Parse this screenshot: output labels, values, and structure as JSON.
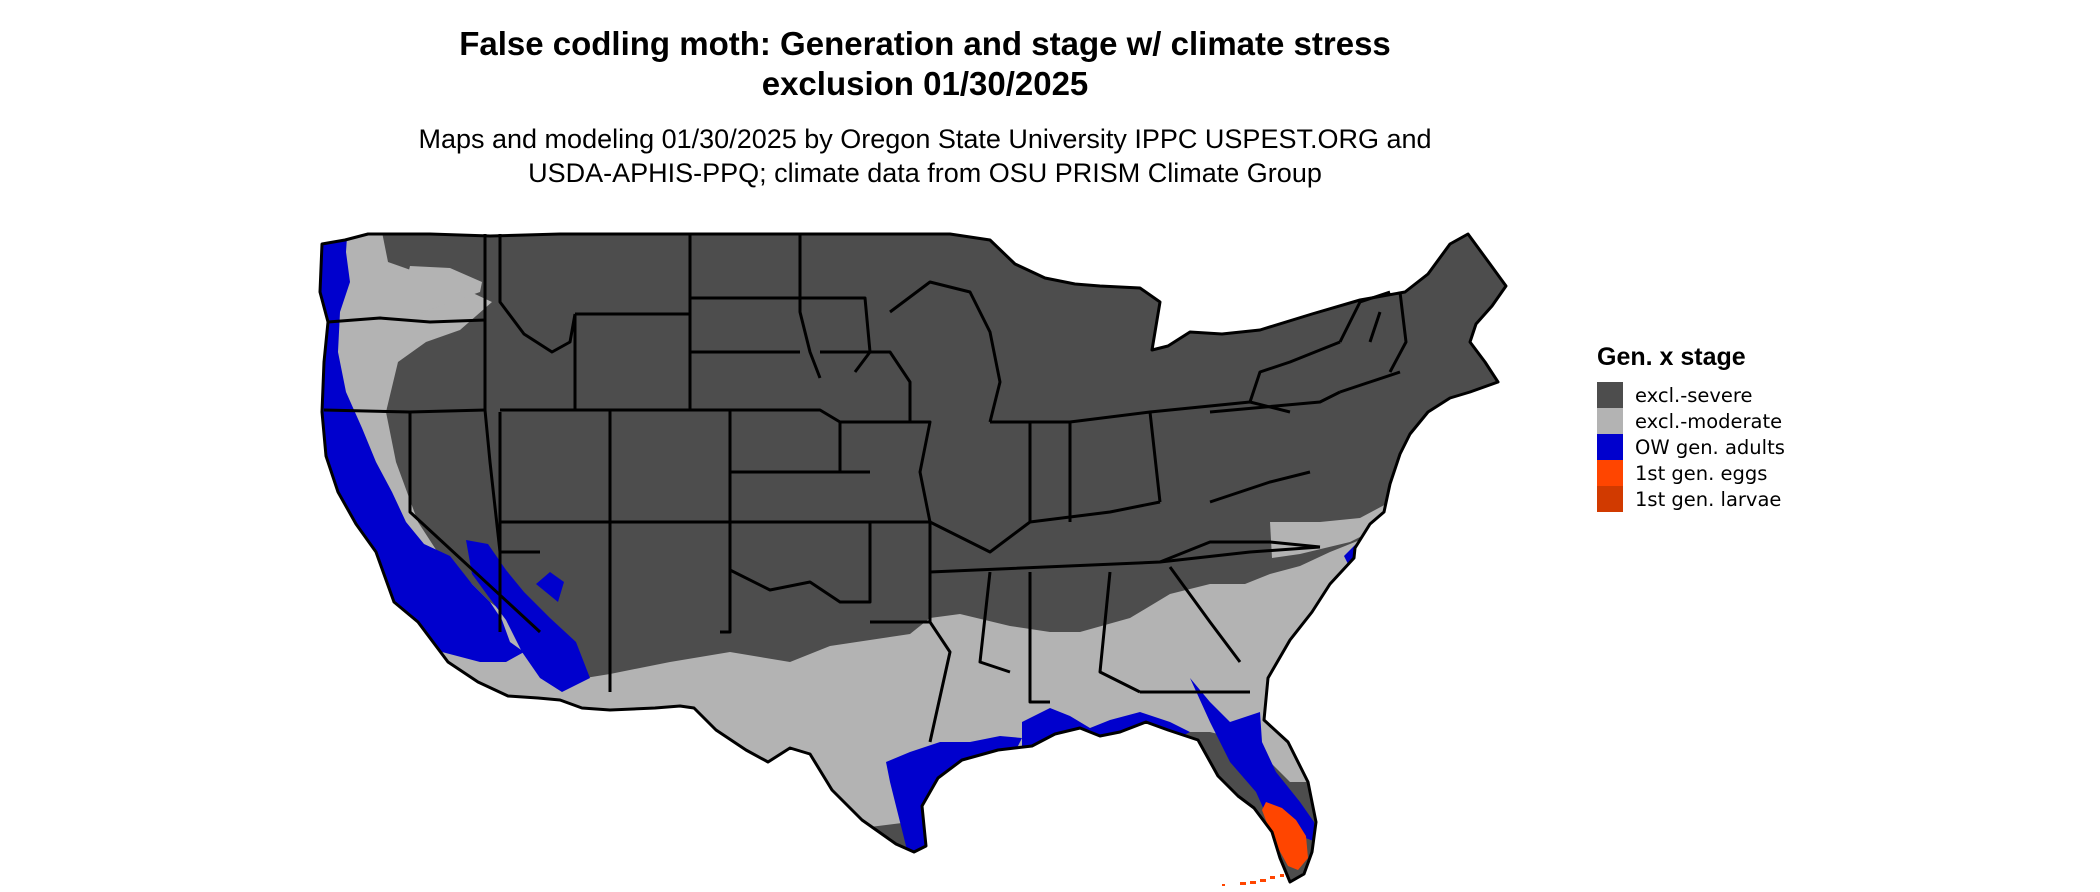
{
  "title": {
    "line1": "False codling moth: Generation and stage w/ climate stress",
    "line2": "exclusion 01/30/2025"
  },
  "subtitle": {
    "line1": "Maps and modeling 01/30/2025 by Oregon State University IPPC USPEST.ORG and",
    "line2": "USDA-APHIS-PPQ; climate data from OSU PRISM Climate Group"
  },
  "legend": {
    "title": "Gen. x stage",
    "items": [
      {
        "label": "excl.-severe",
        "color": "#4d4d4d"
      },
      {
        "label": "excl.-moderate",
        "color": "#b3b3b3"
      },
      {
        "label": "OW gen. adults",
        "color": "#0000cd"
      },
      {
        "label": "1st gen. eggs",
        "color": "#ff4500"
      },
      {
        "label": "1st gen. larvae",
        "color": "#d13a00"
      }
    ]
  },
  "map": {
    "region": "contiguous-united-states",
    "border_color": "#000000"
  }
}
